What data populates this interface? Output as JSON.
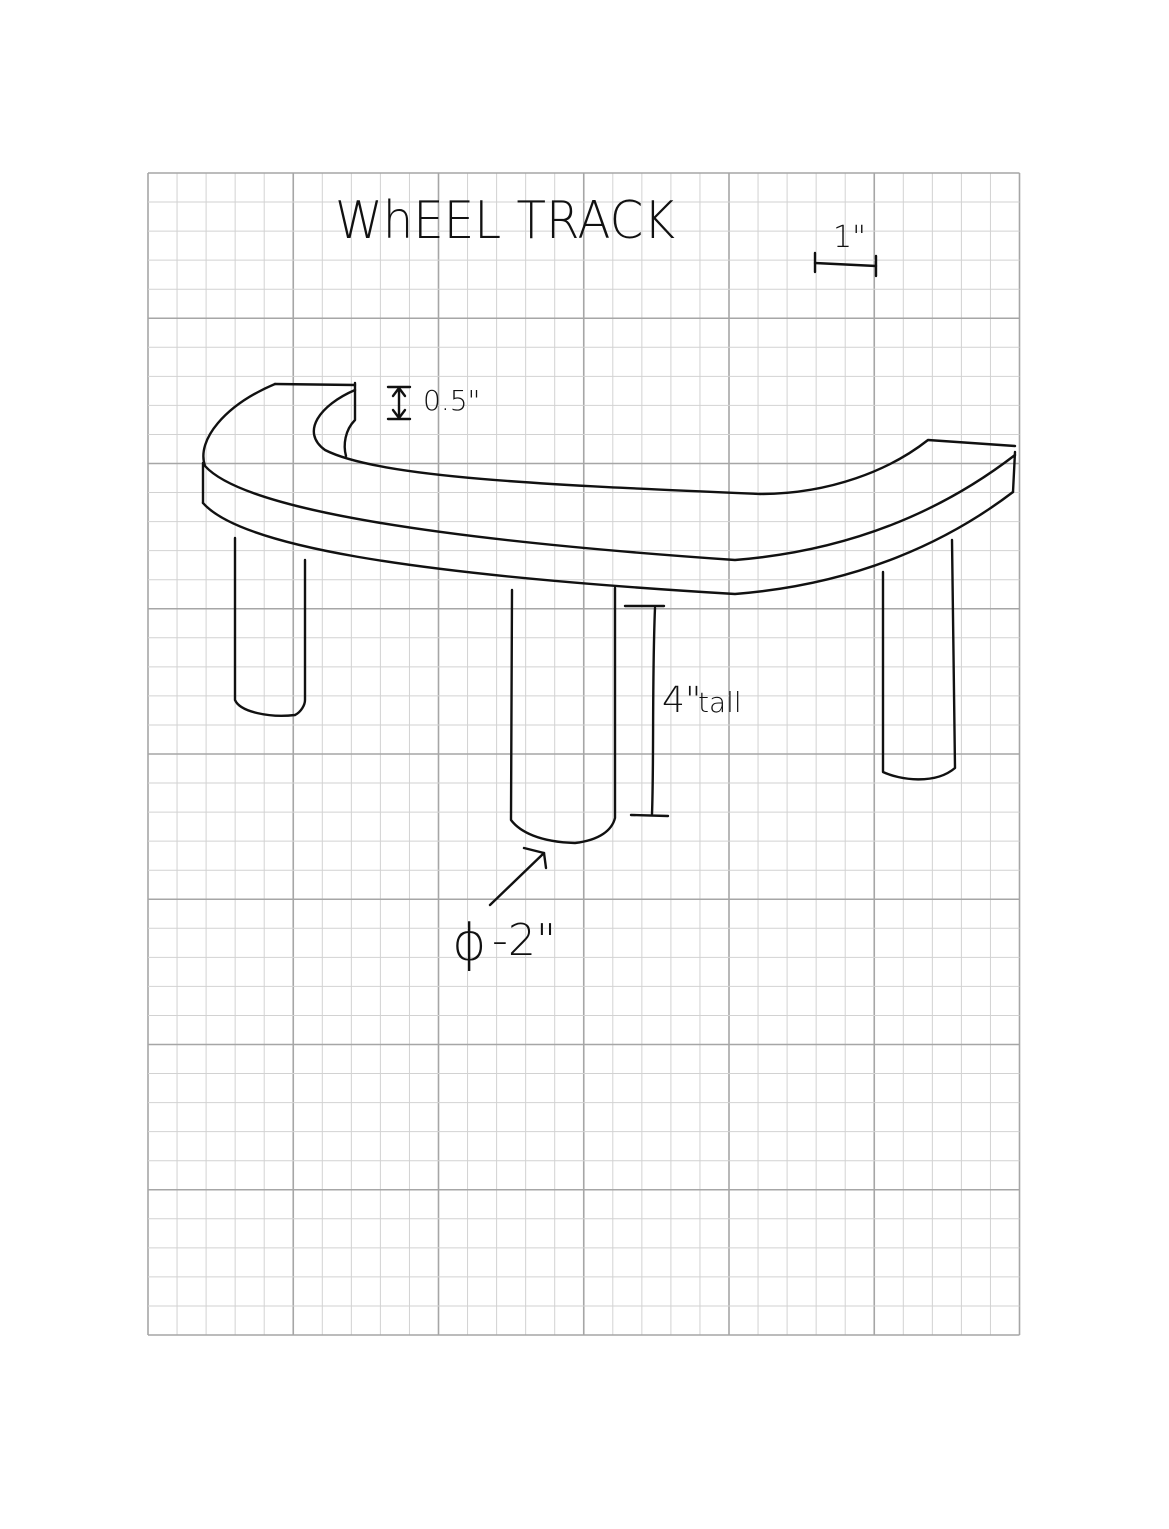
{
  "title": "WhEEL TRACK",
  "scale": {
    "label": "1\""
  },
  "annotations": {
    "thickness": "0.5\"",
    "leg_height": "4\"",
    "leg_height_suffix": "tall",
    "diameter_symbol": "ϕ",
    "diameter_value": "-2\""
  },
  "colors": {
    "ink": "#111111",
    "grid_major": "#a6a6a6",
    "grid_minor": "#d2d2d2",
    "paper": "#ffffff"
  }
}
